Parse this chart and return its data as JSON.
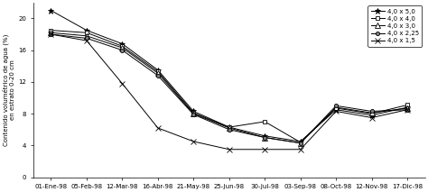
{
  "x_labels": [
    "01-Ene-98",
    "05-Feb-98",
    "12-Mar-98",
    "16-Abr-98",
    "21-May-98",
    "25-Jun-98",
    "30-Jul-98",
    "03-Sep-98",
    "08-Oct-98",
    "12-Nov-98",
    "17-Dic-98"
  ],
  "series": {
    "4,0 x 5,0": [
      21.0,
      18.5,
      16.8,
      13.5,
      8.3,
      6.3,
      5.2,
      4.5,
      8.5,
      7.8,
      8.8
    ],
    "4,0 x 4,0": [
      18.5,
      18.2,
      16.5,
      13.3,
      8.1,
      6.3,
      7.0,
      4.4,
      8.7,
      8.0,
      9.1
    ],
    "4,0 x 3,0": [
      18.2,
      17.8,
      16.3,
      13.1,
      8.0,
      6.2,
      5.0,
      4.3,
      8.8,
      8.1,
      8.7
    ],
    "4,0 x 2,25": [
      18.0,
      17.5,
      16.0,
      12.8,
      7.9,
      6.0,
      5.0,
      4.3,
      9.0,
      8.3,
      8.5
    ],
    "4,0 x 1,5": [
      18.0,
      17.2,
      11.8,
      6.2,
      4.5,
      3.5,
      3.5,
      3.5,
      8.3,
      7.5,
      8.5
    ]
  },
  "markers": {
    "4,0 x 5,0": "*",
    "4,0 x 4,0": "s",
    "4,0 x 3,0": "^",
    "4,0 x 2,25": "o",
    "4,0 x 1,5": "x"
  },
  "marker_sizes": {
    "4,0 x 5,0": 5,
    "4,0 x 4,0": 3,
    "4,0 x 3,0": 4,
    "4,0 x 2,25": 3,
    "4,0 x 1,5": 4
  },
  "mfc": {
    "4,0 x 5,0": "black",
    "4,0 x 4,0": "white",
    "4,0 x 3,0": "white",
    "4,0 x 2,25": "gray",
    "4,0 x 1,5": "black"
  },
  "ylabel": "Contenido volumétrico de agua (%)\nen estrato 0-20 cm",
  "ylim": [
    0,
    22
  ],
  "yticks": [
    0,
    4,
    8,
    12,
    16,
    20
  ],
  "figsize": [
    4.74,
    2.13
  ],
  "dpi": 100,
  "linewidth": 0.7,
  "tick_fontsize": 5,
  "ylabel_fontsize": 5,
  "legend_fontsize": 5
}
